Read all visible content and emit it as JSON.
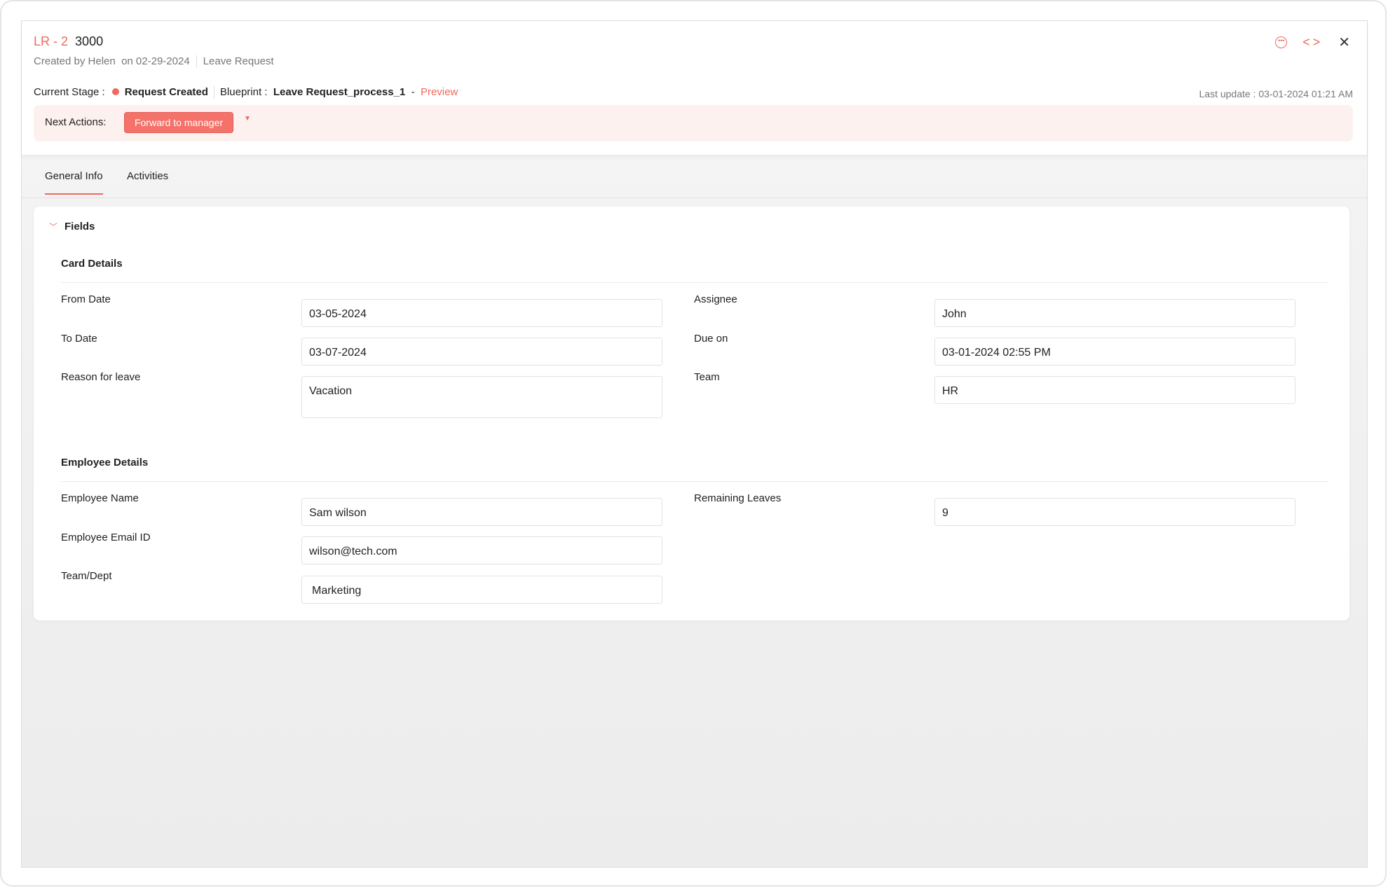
{
  "header": {
    "record_prefix": "LR - 2",
    "record_number": "3000",
    "created_by": "Created by Helen",
    "created_on": "on 02-29-2024",
    "record_type": "Leave Request",
    "current_stage_label": "Current Stage :",
    "current_stage": "Request Created",
    "blueprint_label": "Blueprint :",
    "blueprint": "Leave Request_process_1",
    "dash": "-",
    "preview_link": "Preview",
    "last_update": "Last update :  03-01-2024 01:21 AM",
    "next_actions_label": "Next Actions:",
    "forward_button": "Forward to manager",
    "more_icon": "more-circle-icon",
    "close_glyph": "✕"
  },
  "tabs": [
    {
      "label": "General Info",
      "active": true
    },
    {
      "label": "Activities",
      "active": false
    }
  ],
  "card": {
    "title": "Fields",
    "card_details": {
      "title": "Card Details",
      "fields": [
        {
          "label": "From Date",
          "value": "03-05-2024"
        },
        {
          "label": "To Date",
          "value": "03-07-2024"
        },
        {
          "label": "Reason for leave",
          "value": "Vacation"
        },
        {
          "label": "Assignee",
          "value": "John"
        },
        {
          "label": "Due on",
          "value": "03-01-2024 02:55 PM"
        },
        {
          "label": "Team",
          "value": "HR"
        }
      ]
    },
    "employee_details": {
      "title": "Employee Details",
      "fields": [
        {
          "label": "Employee Name",
          "value": "Sam wilson"
        },
        {
          "label": "Employee Email ID",
          "value": "wilson@tech.com"
        },
        {
          "label": "Team/Dept",
          "value": "Marketing"
        },
        {
          "label": "Remaining Leaves",
          "value": "9"
        }
      ]
    }
  },
  "colors": {
    "accent": "#f0695f",
    "actions_bg": "#fdf1f0"
  }
}
